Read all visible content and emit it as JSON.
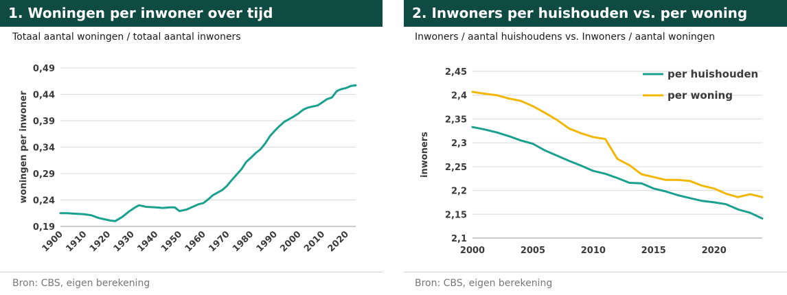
{
  "colors": {
    "title_bg": "#0f4b43",
    "teal": "#1aa08e",
    "gold": "#f2b705",
    "grid": "#d9d9d9"
  },
  "panel1": {
    "title": "1. Woningen per inwoner over tijd",
    "subtitle": "Totaal aantal woningen / totaal aantal inwoners",
    "source": "Bron: CBS, eigen berekening"
  },
  "panel2": {
    "title": "2. Inwoners per huishouden vs. per woning",
    "subtitle": "Inwoners / aantal huishoudens vs. Inwoners / aantal woningen",
    "source": "Bron: CBS, eigen berekening"
  },
  "chart_data": [
    {
      "type": "line",
      "ylabel": "woningen per inwoner",
      "xlabel": "",
      "xlim": [
        1900,
        2024
      ],
      "ylim": [
        0.19,
        0.49
      ],
      "x_ticks": [
        1900,
        1910,
        1920,
        1930,
        1940,
        1950,
        1960,
        1970,
        1980,
        1990,
        2000,
        2010,
        2020
      ],
      "y_ticks": [
        0.19,
        0.24,
        0.29,
        0.34,
        0.39,
        0.44,
        0.49
      ],
      "y_tick_labels": [
        "0,19",
        "0,24",
        "0,29",
        "0,34",
        "0,39",
        "0,44",
        "0,49"
      ],
      "grid": "horizontal",
      "series": [
        {
          "color": "#1aa08e",
          "x": [
            1900,
            1903,
            1906,
            1910,
            1913,
            1916,
            1919,
            1921,
            1923,
            1926,
            1929,
            1931,
            1933,
            1936,
            1940,
            1943,
            1946,
            1948,
            1950,
            1953,
            1956,
            1958,
            1960,
            1962,
            1964,
            1966,
            1968,
            1970,
            1972,
            1974,
            1976,
            1978,
            1980,
            1982,
            1984,
            1986,
            1988,
            1990,
            1992,
            1994,
            1996,
            1998,
            2000,
            2002,
            2004,
            2006,
            2008,
            2010,
            2012,
            2014,
            2016,
            2018,
            2020,
            2022,
            2024
          ],
          "y": [
            0.215,
            0.215,
            0.214,
            0.213,
            0.211,
            0.206,
            0.203,
            0.201,
            0.2,
            0.208,
            0.219,
            0.225,
            0.23,
            0.227,
            0.226,
            0.225,
            0.226,
            0.226,
            0.219,
            0.222,
            0.228,
            0.232,
            0.234,
            0.241,
            0.249,
            0.254,
            0.259,
            0.267,
            0.278,
            0.288,
            0.298,
            0.312,
            0.32,
            0.329,
            0.336,
            0.347,
            0.361,
            0.371,
            0.38,
            0.388,
            0.393,
            0.398,
            0.404,
            0.411,
            0.415,
            0.417,
            0.419,
            0.425,
            0.431,
            0.434,
            0.446,
            0.45,
            0.452,
            0.456,
            0.457
          ]
        }
      ]
    },
    {
      "type": "line",
      "ylabel": "inwoners",
      "xlabel": "",
      "xlim": [
        2000,
        2024
      ],
      "ylim": [
        2.1,
        2.45
      ],
      "x_ticks": [
        2000,
        2005,
        2010,
        2015,
        2020
      ],
      "y_ticks": [
        2.1,
        2.15,
        2.2,
        2.25,
        2.3,
        2.35,
        2.4,
        2.45
      ],
      "y_tick_labels": [
        "2,1",
        "2,15",
        "2,2",
        "2,25",
        "2,3",
        "2,35",
        "2,4",
        "2,45"
      ],
      "grid": "horizontal",
      "legend": "top-right",
      "series": [
        {
          "name": "per huishouden",
          "color": "#1aa08e",
          "x": [
            2000,
            2001,
            2002,
            2003,
            2004,
            2005,
            2006,
            2007,
            2008,
            2009,
            2010,
            2011,
            2012,
            2013,
            2014,
            2015,
            2016,
            2017,
            2018,
            2019,
            2020,
            2021,
            2022,
            2023,
            2024
          ],
          "y": [
            2.333,
            2.328,
            2.322,
            2.314,
            2.305,
            2.298,
            2.284,
            2.273,
            2.262,
            2.252,
            2.241,
            2.235,
            2.226,
            2.216,
            2.215,
            2.204,
            2.198,
            2.19,
            2.184,
            2.178,
            2.175,
            2.171,
            2.16,
            2.153,
            2.141
          ]
        },
        {
          "name": "per woning",
          "color": "#f2b705",
          "x": [
            2000,
            2001,
            2002,
            2003,
            2004,
            2005,
            2006,
            2007,
            2008,
            2009,
            2010,
            2011,
            2012,
            2013,
            2014,
            2015,
            2016,
            2017,
            2018,
            2019,
            2020,
            2021,
            2022,
            2023,
            2024
          ],
          "y": [
            2.407,
            2.403,
            2.4,
            2.393,
            2.388,
            2.377,
            2.363,
            2.348,
            2.33,
            2.32,
            2.312,
            2.308,
            2.266,
            2.253,
            2.234,
            2.228,
            2.222,
            2.222,
            2.22,
            2.21,
            2.204,
            2.193,
            2.186,
            2.192,
            2.186
          ]
        }
      ]
    }
  ]
}
